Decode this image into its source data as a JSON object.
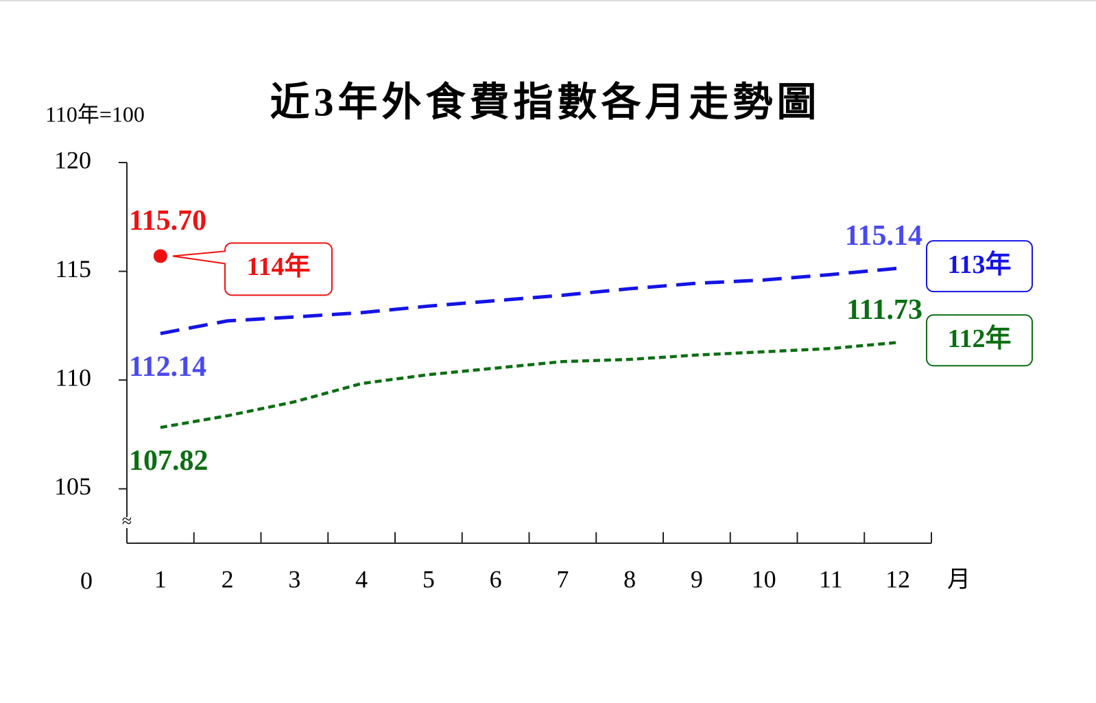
{
  "chart_data": {
    "type": "line",
    "title": "近3年外食費指數各月走勢圖",
    "unit_label": "110年=100",
    "x_label": "月",
    "categories": [
      "1",
      "2",
      "3",
      "4",
      "5",
      "6",
      "7",
      "8",
      "9",
      "10",
      "11",
      "12"
    ],
    "ylim": [
      102.5,
      120
    ],
    "yticks": [
      105,
      110,
      115,
      120
    ],
    "y_origin_label": 0,
    "axis_break": true,
    "series": [
      {
        "name": "112年",
        "color": "#0b6e12",
        "dash": "dotted",
        "values": [
          107.82,
          108.36,
          109.0,
          109.84,
          110.25,
          110.55,
          110.85,
          110.95,
          111.15,
          111.3,
          111.45,
          111.73
        ],
        "value_labels": [
          "107.82",
          null,
          null,
          null,
          null,
          null,
          null,
          null,
          null,
          null,
          null,
          "111.73"
        ]
      },
      {
        "name": "113年",
        "color": "#1414e6",
        "label_color": "#4a4af0",
        "dash": "dashed",
        "values": [
          112.14,
          112.72,
          112.9,
          113.1,
          113.4,
          113.65,
          113.9,
          114.2,
          114.45,
          114.6,
          114.85,
          115.14
        ],
        "value_labels": [
          "112.14",
          null,
          null,
          null,
          null,
          null,
          null,
          null,
          null,
          null,
          null,
          "115.14"
        ]
      },
      {
        "name": "114年",
        "color": "#ee1111",
        "dash": "point",
        "values": [
          115.7,
          null,
          null,
          null,
          null,
          null,
          null,
          null,
          null,
          null,
          null,
          null
        ],
        "value_labels": [
          "115.70",
          null,
          null,
          null,
          null,
          null,
          null,
          null,
          null,
          null,
          null,
          null
        ]
      }
    ]
  }
}
